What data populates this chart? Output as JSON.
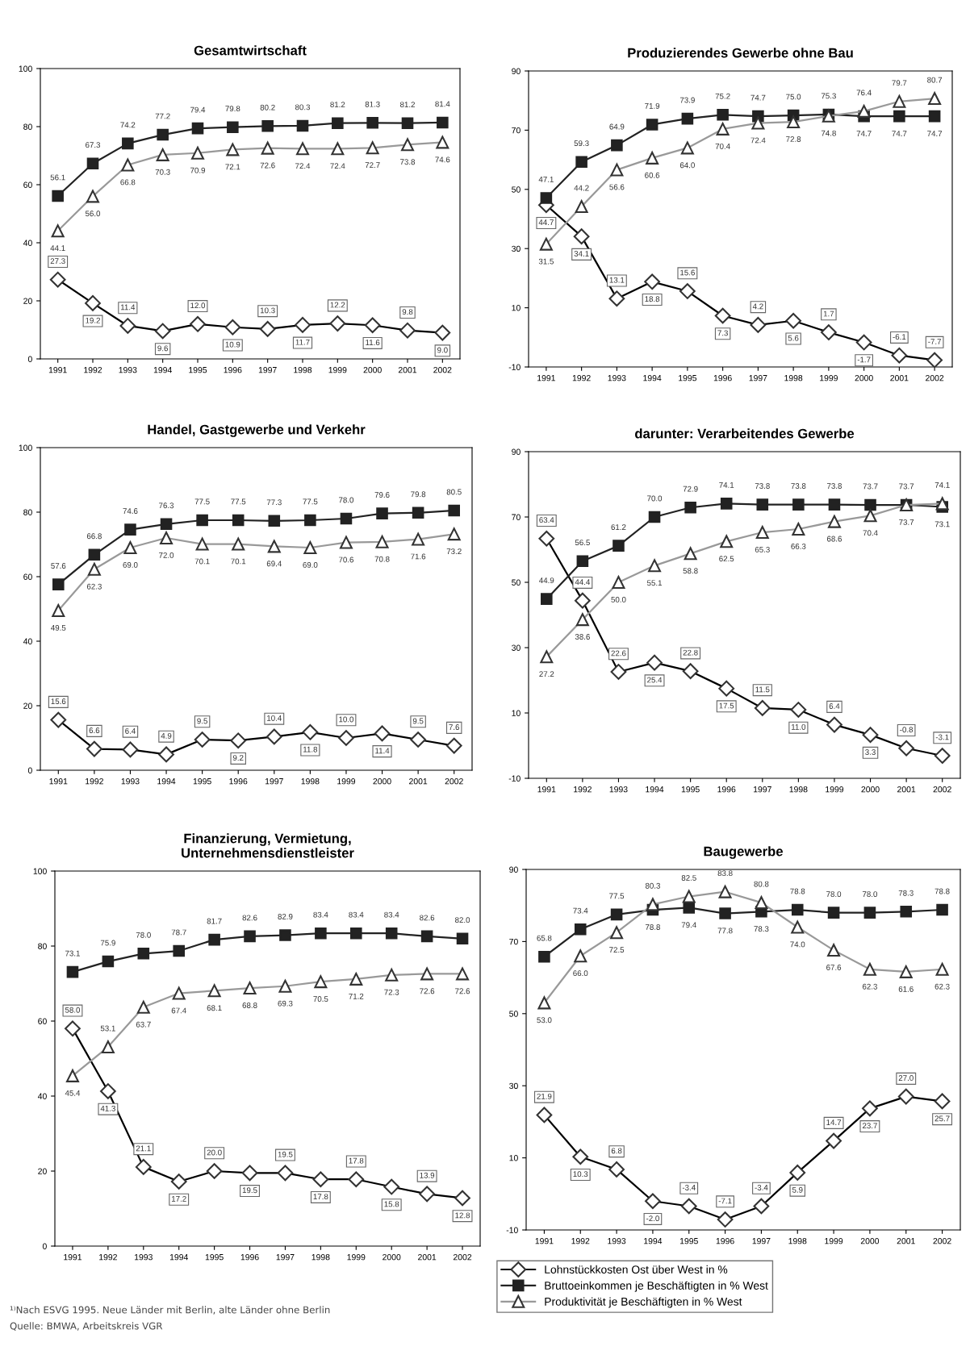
{
  "chart_data": [
    {
      "type": "line",
      "title": "Gesamtwirtschaft",
      "categories": [
        "1991",
        "1992",
        "1993",
        "1994",
        "1995",
        "1996",
        "1997",
        "1998",
        "1999",
        "2000",
        "2001",
        "2002"
      ],
      "ylim": [
        0,
        100
      ],
      "yticks": [
        0,
        20,
        40,
        60,
        80,
        100
      ],
      "grid": false,
      "data_labels": true,
      "series": [
        {
          "color": "#000000",
          "marker": "diamond",
          "values": [
            27.3,
            19.2,
            11.4,
            9.6,
            12.0,
            10.9,
            10.3,
            11.7,
            12.2,
            11.6,
            9.8,
            9.0
          ],
          "value_labels": [
            "27.3",
            "19.2",
            "11.4",
            "9.6",
            "12.0",
            "10.9",
            "10.3",
            "11.7",
            "12.2",
            "11.6",
            "9.8",
            "9.0"
          ]
        },
        {
          "color": "#222222",
          "marker": "square",
          "values": [
            56.1,
            67.3,
            74.2,
            77.2,
            79.4,
            79.8,
            80.2,
            80.3,
            81.2,
            81.3,
            81.2,
            81.4
          ]
        },
        {
          "color": "#999999",
          "marker": "triangle",
          "values": [
            44.1,
            56.0,
            66.8,
            70.3,
            70.9,
            72.1,
            72.6,
            72.4,
            72.4,
            72.7,
            73.8,
            74.6
          ],
          "value_labels": [
            "44.1",
            "56.0",
            "66.8",
            "70.3",
            "70.9",
            "72.1",
            "72.6",
            "72.4",
            "72.4",
            "72.7",
            "73.8",
            "74.6"
          ]
        }
      ]
    },
    {
      "type": "line",
      "title": "Produzierendes Gewerbe ohne Bau",
      "categories": [
        "1991",
        "1992",
        "1993",
        "1994",
        "1995",
        "1996",
        "1997",
        "1998",
        "1999",
        "2000",
        "2001",
        "2002"
      ],
      "ylim": [
        -10,
        90
      ],
      "yticks": [
        -10,
        10,
        30,
        50,
        70,
        90
      ],
      "grid": false,
      "data_labels": true,
      "series": [
        {
          "color": "#000000",
          "marker": "diamond",
          "values": [
            44.7,
            34.1,
            13.1,
            18.8,
            15.6,
            7.3,
            4.2,
            5.6,
            1.7,
            -1.7,
            -6.1,
            -7.7
          ]
        },
        {
          "color": "#222222",
          "marker": "square",
          "values": [
            47.1,
            59.3,
            64.9,
            71.9,
            73.9,
            75.2,
            74.7,
            75.0,
            75.3,
            74.7,
            74.7,
            74.7
          ],
          "value_labels": [
            "47.1",
            "59.3",
            "64.9",
            "71.9",
            "73.9",
            "75.2",
            "74.7",
            "75.0",
            "75.3",
            "74.7",
            "74.7",
            "74.7"
          ]
        },
        {
          "color": "#999999",
          "marker": "triangle",
          "values": [
            31.5,
            44.2,
            56.6,
            60.6,
            64.0,
            70.4,
            72.4,
            72.8,
            74.8,
            76.4,
            79.7,
            80.7
          ],
          "value_labels": [
            "31.5",
            "44.2",
            "56.6",
            "60.6",
            "64.0",
            "70.4",
            "72.4",
            "72.8",
            "74.8",
            "76.4",
            "79.7",
            "80.7"
          ]
        }
      ]
    },
    {
      "type": "line",
      "title": "Handel, Gastgewerbe und Verkehr",
      "categories": [
        "1991",
        "1992",
        "1993",
        "1994",
        "1995",
        "1996",
        "1997",
        "1998",
        "1999",
        "2000",
        "2001",
        "2002"
      ],
      "ylim": [
        0,
        100
      ],
      "yticks": [
        0,
        20,
        40,
        60,
        80,
        100
      ],
      "grid": false,
      "data_labels": true,
      "series": [
        {
          "color": "#000000",
          "marker": "diamond",
          "values": [
            15.6,
            6.6,
            6.4,
            4.9,
            9.5,
            9.2,
            10.4,
            11.8,
            10.0,
            11.4,
            9.5,
            7.6
          ],
          "value_labels": [
            "15.6",
            "6.6",
            "6.4",
            "4.9",
            "9.5",
            "9.2",
            "10.4",
            "11.8",
            "10.0",
            "11.4",
            "9.5",
            "7.6"
          ]
        },
        {
          "color": "#222222",
          "marker": "square",
          "values": [
            57.6,
            66.8,
            74.6,
            76.3,
            77.5,
            77.5,
            77.3,
            77.5,
            78.0,
            79.6,
            79.8,
            80.5
          ],
          "value_labels": [
            "57.6",
            "66.8",
            "74.6",
            "76.3",
            "77.5",
            "77.5",
            "77.3",
            "77.5",
            "78.0",
            "79.6",
            "79.8",
            "80.5"
          ]
        },
        {
          "color": "#999999",
          "marker": "triangle",
          "values": [
            49.5,
            62.3,
            69.0,
            72.0,
            70.1,
            70.1,
            69.4,
            69.0,
            70.6,
            70.8,
            71.6,
            73.2
          ],
          "value_labels": [
            "49.5",
            "62.3",
            "69.0",
            "72.0",
            "70.1",
            "70.1",
            "69.4",
            "69.0",
            "70.6",
            "70.8",
            "71.6",
            "73.2"
          ]
        }
      ]
    },
    {
      "type": "line",
      "title": "darunter: Verarbeitendes Gewerbe",
      "categories": [
        "1991",
        "1992",
        "1993",
        "1994",
        "1995",
        "1996",
        "1997",
        "1998",
        "1999",
        "2000",
        "2001",
        "2002"
      ],
      "ylim": [
        -10,
        90
      ],
      "yticks": [
        -10,
        10,
        30,
        50,
        70,
        90
      ],
      "grid": false,
      "data_labels": true,
      "series": [
        {
          "color": "#000000",
          "marker": "diamond",
          "values": [
            63.4,
            44.4,
            22.6,
            25.4,
            22.8,
            17.5,
            11.5,
            11.0,
            6.4,
            3.3,
            -0.8,
            -3.1
          ],
          "value_labels": [
            "63.4",
            "44.4",
            "22.6",
            "25.4",
            "22.8",
            "17.5",
            "11.5",
            "11.0",
            "6.4",
            "3.3",
            "-0.8",
            "-3.1"
          ]
        },
        {
          "color": "#222222",
          "marker": "square",
          "values": [
            44.9,
            56.5,
            61.2,
            70.0,
            72.9,
            74.1,
            73.8,
            73.8,
            73.8,
            73.7,
            73.7,
            73.1
          ],
          "value_labels": [
            "44.9",
            "56.5",
            "61.2",
            "70.0",
            "72.9",
            "74.1",
            "73.8",
            "73.8",
            "73.8",
            "73.7",
            "73.7",
            "73.1"
          ]
        },
        {
          "color": "#999999",
          "marker": "triangle",
          "values": [
            27.2,
            38.6,
            50.0,
            55.1,
            58.8,
            62.5,
            65.3,
            66.3,
            68.6,
            70.4,
            73.7,
            74.1
          ],
          "value_labels": [
            "27.2",
            "38.6",
            "50.0",
            "55.1",
            "58.8",
            "62.5",
            "65.3",
            "66.3",
            "68.6",
            "70.4",
            "73.7",
            "74.1"
          ]
        }
      ]
    },
    {
      "type": "line",
      "title": "Finanzierung, Vermietung,\nUnternehmensdienstleister",
      "categories": [
        "1991",
        "1992",
        "1993",
        "1994",
        "1995",
        "1996",
        "1997",
        "1998",
        "1999",
        "2000",
        "2001",
        "2002"
      ],
      "ylim": [
        0,
        100
      ],
      "yticks": [
        0,
        20,
        40,
        60,
        80,
        100
      ],
      "grid": false,
      "data_labels": true,
      "annotations": [
        "¹⁾Nach ESVG 1995. Neue Länder mit Berlin, alte Länder ohne Berlin",
        "Quelle: BMWA, Arbeitskreis VGR"
      ],
      "series": [
        {
          "color": "#000000",
          "marker": "diamond",
          "values": [
            58.0,
            41.3,
            21.1,
            17.2,
            20.0,
            19.5,
            19.5,
            17.8,
            17.8,
            15.8,
            13.9,
            12.8
          ],
          "value_labels": [
            "58.0",
            "41.3",
            "21.1",
            "17.2",
            "20.0",
            "19.5",
            "19.5",
            "17.8",
            "17.8",
            "15.8",
            "13.9",
            "12.8"
          ]
        },
        {
          "color": "#222222",
          "marker": "square",
          "values": [
            73.1,
            75.9,
            78.0,
            78.7,
            81.7,
            82.6,
            82.9,
            83.4,
            83.4,
            83.4,
            82.6,
            82.0
          ],
          "value_labels": [
            "73.1",
            "75.9",
            "78.0",
            "78.7",
            "81.7",
            "82.6",
            "82.9",
            "83.4",
            "83.4",
            "83.4",
            "82.6",
            "82.0"
          ]
        },
        {
          "color": "#999999",
          "marker": "triangle",
          "values": [
            45.4,
            53.1,
            63.7,
            67.4,
            68.1,
            68.8,
            69.3,
            70.5,
            71.2,
            72.3,
            72.6,
            72.6
          ]
        }
      ]
    },
    {
      "type": "line",
      "title": "Baugewerbe",
      "categories": [
        "1991",
        "1992",
        "1993",
        "1994",
        "1995",
        "1996",
        "1997",
        "1998",
        "1999",
        "2000",
        "2001",
        "2002"
      ],
      "ylim": [
        -10,
        90
      ],
      "yticks": [
        -10,
        10,
        30,
        50,
        70,
        90
      ],
      "grid": false,
      "data_labels": true,
      "legend": "bottom",
      "series": [
        {
          "name": "Lohnstückkosten Ost über West in %",
          "color": "#000000",
          "marker": "diamond",
          "values": [
            21.9,
            10.3,
            6.8,
            -2.0,
            -3.4,
            -7.1,
            -3.4,
            5.9,
            14.7,
            23.7,
            27.0,
            25.7
          ],
          "value_labels": [
            "21.9",
            "10.3",
            "6.8",
            "-2.0",
            "-3.4",
            "-7.1",
            "-3.4",
            "5.9",
            "14.7",
            "23.7",
            "27.0",
            "25.7"
          ]
        },
        {
          "name": "Bruttoeinkommen je Beschäftigten in % West",
          "color": "#222222",
          "marker": "square",
          "values": [
            65.8,
            73.4,
            77.5,
            78.8,
            79.4,
            77.8,
            78.3,
            78.8,
            78.0,
            78.0,
            78.3,
            78.8
          ],
          "value_labels": [
            "65.8",
            "73.4",
            "77.5",
            "78.8",
            "79.4",
            "77.8",
            "78.3",
            "78.8",
            "78.0",
            "78.0",
            "78.3",
            "78.8"
          ]
        },
        {
          "name": "Produktivität je Beschäftigten in % West",
          "color": "#999999",
          "marker": "triangle",
          "values": [
            53.0,
            66.0,
            72.5,
            80.3,
            82.5,
            83.8,
            80.8,
            74.0,
            67.6,
            62.3,
            61.6,
            62.3
          ],
          "value_labels": [
            "53.0",
            "66.0",
            "72.5",
            "80.3",
            "82.5",
            "83.8",
            "80.8",
            "74.0",
            "67.6",
            "62.3",
            "61.6",
            "62.3"
          ]
        }
      ]
    }
  ]
}
